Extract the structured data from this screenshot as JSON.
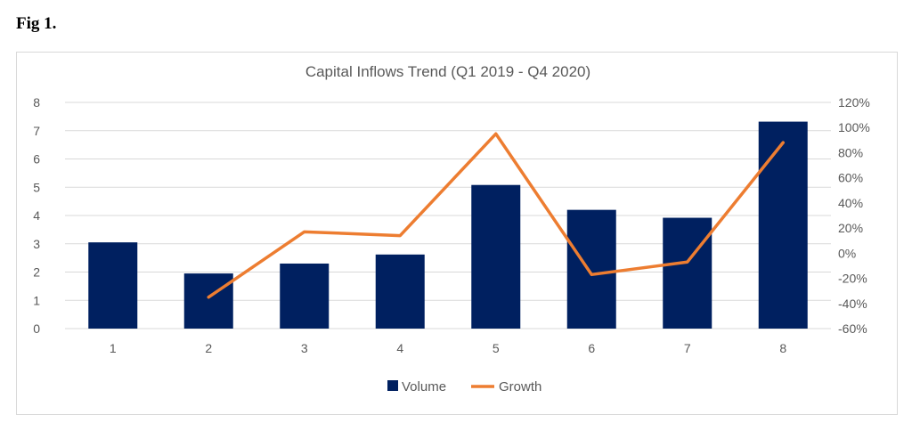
{
  "figure": {
    "label": "Fig 1."
  },
  "chart_data": {
    "type": "bar",
    "title": "Capital Inflows Trend (Q1 2019 - Q4 2020)",
    "categories": [
      "1",
      "2",
      "3",
      "4",
      "5",
      "6",
      "7",
      "8"
    ],
    "series": [
      {
        "name": "Volume",
        "type": "bar",
        "axis": "left",
        "color": "#002060",
        "values": [
          3.05,
          1.95,
          2.3,
          2.62,
          5.08,
          4.2,
          3.92,
          7.32
        ]
      },
      {
        "name": "Growth",
        "type": "line",
        "axis": "right",
        "color": "#ED7D31",
        "values": [
          null,
          -35,
          17,
          14,
          95,
          -17,
          -7,
          88
        ]
      }
    ],
    "y_left": {
      "min": 0,
      "max": 8,
      "step": 1,
      "ticks": [
        "0",
        "1",
        "2",
        "3",
        "4",
        "5",
        "6",
        "7",
        "8"
      ]
    },
    "y_right": {
      "min": -60,
      "max": 120,
      "step": 20,
      "ticks": [
        "-60%",
        "-40%",
        "-20%",
        "0%",
        "20%",
        "40%",
        "60%",
        "80%",
        "100%",
        "120%"
      ]
    },
    "grid": true,
    "legend": "bottom",
    "gridline_color": "#d9d9d9"
  }
}
